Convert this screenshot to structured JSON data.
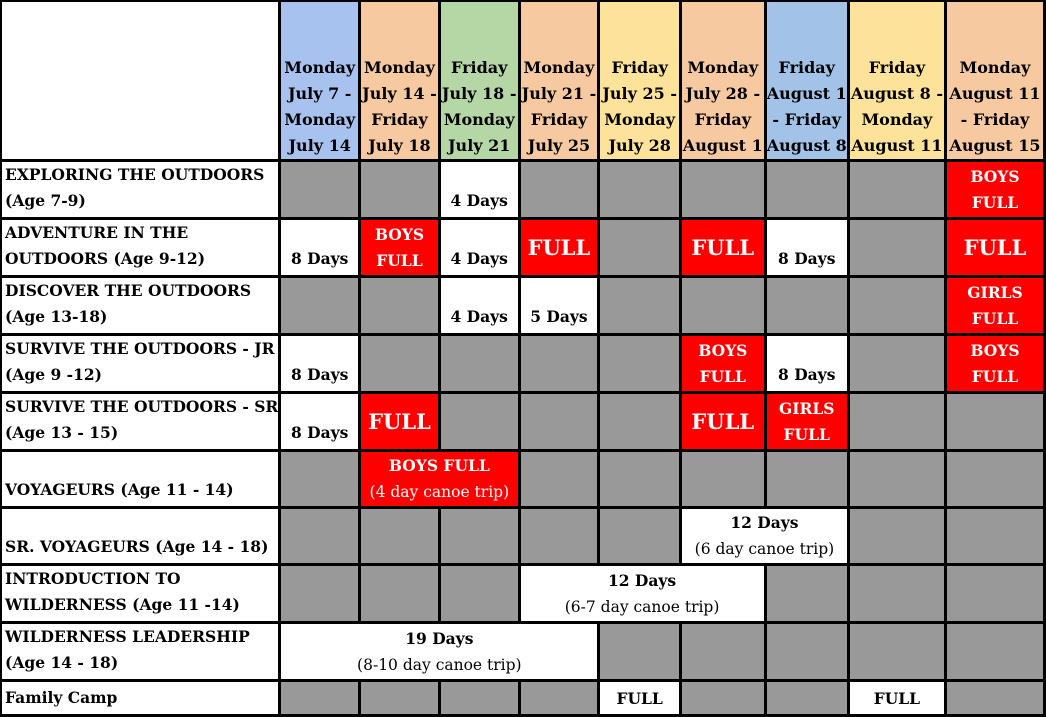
{
  "headers": [
    {
      "l1": "Monday",
      "l2": "July 7 -",
      "l3": "Monday",
      "l4": "July 14"
    },
    {
      "l1": "Monday",
      "l2": "July 14 -",
      "l3": "Friday",
      "l4": "July 18"
    },
    {
      "l1": "Friday",
      "l2": "July 18 -",
      "l3": "Monday",
      "l4": "July 21"
    },
    {
      "l1": "Monday",
      "l2": "July 21 -",
      "l3": "Friday",
      "l4": "July 25"
    },
    {
      "l1": "Friday",
      "l2": "July 25 -",
      "l3": "Monday",
      "l4": "July 28"
    },
    {
      "l1": "Monday",
      "l2": "July 28 -",
      "l3": "Friday",
      "l4": "August 1"
    },
    {
      "l1": "Friday",
      "l2": "August 1",
      "l3": "- Friday",
      "l4": "August 8"
    },
    {
      "l1": "Friday",
      "l2": "August 8 -",
      "l3": "Monday",
      "l4": "August 11"
    },
    {
      "l1": "Monday",
      "l2": "August 11",
      "l3": "- Friday",
      "l4": "August 15"
    }
  ],
  "header_colors": [
    "#a8c2ef",
    "#f7c9a1",
    "#b5d6a5",
    "#f7c9a1",
    "#fde39a",
    "#f7c9a1",
    "#a2c3e7",
    "#fde39a",
    "#f7c9a1"
  ],
  "programs": [
    {
      "l1": "EXPLORING THE OUTDOORS",
      "l2": "(Age 7-9)"
    },
    {
      "l1": "ADVENTURE IN THE",
      "l2": "OUTDOORS (Age 9-12)"
    },
    {
      "l1": "DISCOVER THE OUTDOORS",
      "l2": "(Age 13-18)"
    },
    {
      "l1": "SURVIVE THE OUTDOORS - JR",
      "l2": "(Age 9 -12)"
    },
    {
      "l1": "SURVIVE THE OUTDOORS - SR",
      "l2": "(Age 13 - 15)"
    },
    {
      "l1": "",
      "l2": "VOYAGEURS (Age 11 - 14)"
    },
    {
      "l1": "",
      "l2": "SR. VOYAGEURS (Age 14 - 18)"
    },
    {
      "l1": "INTRODUCTION TO",
      "l2": "WILDERNESS (Age 11 -14)"
    },
    {
      "l1": "WILDERNESS LEADERSHIP",
      "l2": "(Age 14 - 18)"
    },
    {
      "l1": "Family Camp",
      "l2": ""
    }
  ],
  "cells": {
    "days4": "4 Days",
    "days5": "5 Days",
    "days8": "8 Days",
    "full": "FULL",
    "boys": "BOYS",
    "girls": "GIRLS",
    "boys_full": "BOYS FULL",
    "canoe4": "(4 day canoe trip)",
    "days12": "12 Days",
    "canoe6": "(6 day canoe trip)",
    "canoe67": "(6-7 day canoe trip)",
    "days19": "19 Days",
    "canoe810": "(8-10 day canoe trip)"
  },
  "colors": {
    "full": "#ff0000",
    "unavailable": "#999999",
    "available": "#ffffff"
  }
}
